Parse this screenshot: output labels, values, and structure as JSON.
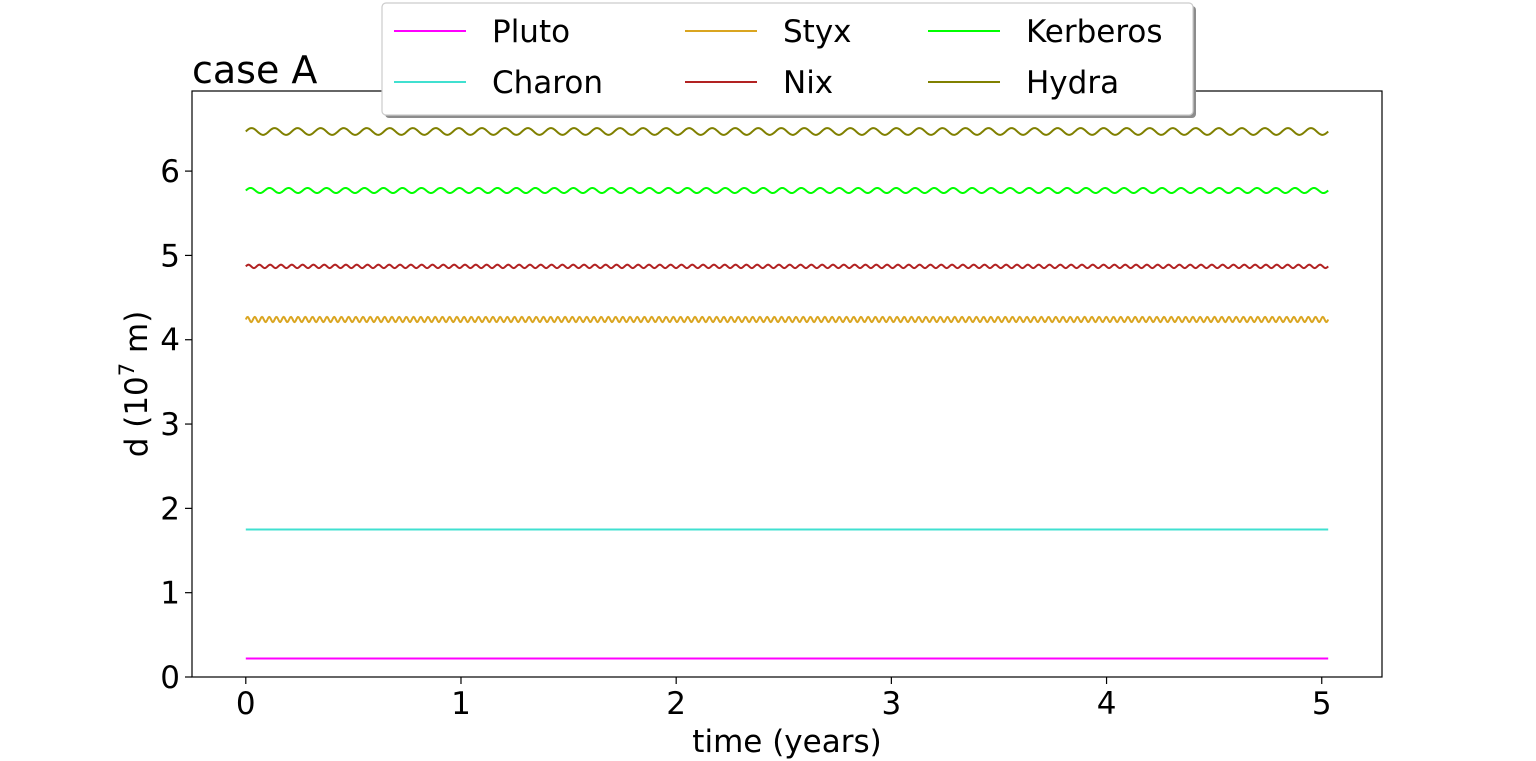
{
  "chart_data": {
    "type": "line",
    "title": "case A",
    "xlabel": "time (years)",
    "ylabel_base": "d (10",
    "ylabel_exp": "7",
    "ylabel_unit": " m)",
    "xlim": [
      -0.25,
      5.28
    ],
    "ylim": [
      0,
      6.95
    ],
    "xticks": [
      0,
      1,
      2,
      3,
      4,
      5
    ],
    "yticks": [
      0,
      1,
      2,
      3,
      4,
      5,
      6
    ],
    "grid": false,
    "legend_position": "top-center",
    "legend_columns": 3,
    "x_range": [
      0,
      5.03
    ],
    "series": [
      {
        "name": "Pluto",
        "color": "#ff00ff",
        "mean": 0.22,
        "amplitude": 0.0,
        "cycles": 0
      },
      {
        "name": "Charon",
        "color": "#40e0d0",
        "mean": 1.75,
        "amplitude": 0.0,
        "cycles": 0
      },
      {
        "name": "Styx",
        "color": "#daa520",
        "mean": 4.24,
        "amplitude": 0.03,
        "cycles": 150
      },
      {
        "name": "Nix",
        "color": "#b22222",
        "mean": 4.87,
        "amplitude": 0.02,
        "cycles": 100
      },
      {
        "name": "Kerberos",
        "color": "#00ff00",
        "mean": 5.77,
        "amplitude": 0.03,
        "cycles": 57
      },
      {
        "name": "Hydra",
        "color": "#808000",
        "mean": 6.47,
        "amplitude": 0.04,
        "cycles": 47
      }
    ]
  }
}
